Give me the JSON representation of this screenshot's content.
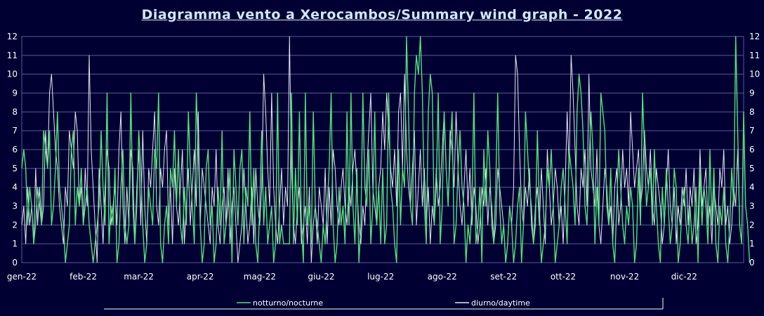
{
  "chart_data": {
    "type": "line",
    "title": "Diagramma vento a Xerocambos/Summary wind graph - 2022",
    "xlabel": "",
    "ylabel": "",
    "ylim": [
      0,
      12
    ],
    "yticks": [
      0,
      1,
      2,
      3,
      4,
      5,
      6,
      7,
      8,
      9,
      10,
      11,
      12
    ],
    "grid": true,
    "legend_position": "bottom",
    "month_labels": [
      "gen-22",
      "feb-22",
      "mar-22",
      "apr-22",
      "mag-22",
      "giu-22",
      "lug-22",
      "ago-22",
      "set-22",
      "ott-22",
      "nov-22",
      "dic-22"
    ],
    "month_days": [
      31,
      28,
      31,
      30,
      31,
      30,
      31,
      31,
      30,
      31,
      30,
      31
    ],
    "colors": {
      "background": "#000033",
      "grid": "#5a5a9a",
      "nocturne": "#55e07a",
      "daytime": "#e8e8f4",
      "title": "#d0e8ff"
    },
    "series": [
      {
        "name": "notturno/nocturne",
        "values": [
          5,
          6,
          5,
          2,
          4,
          3,
          1,
          2,
          4,
          3,
          2,
          7,
          6,
          5,
          7,
          2,
          3,
          5,
          8,
          4,
          3,
          2,
          0,
          1,
          2,
          6,
          7,
          2,
          4,
          3,
          5,
          2,
          3,
          4,
          2,
          1,
          0,
          1,
          2,
          3,
          7,
          4,
          2,
          9,
          1,
          3,
          2,
          5,
          0,
          1,
          4,
          6,
          2,
          1,
          2,
          9,
          3,
          1,
          3,
          7,
          5,
          2,
          0,
          1,
          4,
          3,
          2,
          6,
          5,
          9,
          1,
          0,
          2,
          3,
          1,
          5,
          4,
          7,
          3,
          6,
          2,
          1,
          4,
          2,
          8,
          5,
          3,
          1,
          9,
          6,
          2,
          0,
          1,
          5,
          6,
          2,
          3,
          0,
          1,
          4,
          2,
          7,
          1,
          2,
          3,
          5,
          0,
          6,
          4,
          2,
          5,
          6,
          1,
          4,
          3,
          8,
          2,
          5,
          1,
          0,
          3,
          7,
          2,
          4,
          1,
          2,
          3,
          0,
          1,
          9,
          1,
          2,
          1,
          1,
          1,
          1,
          9,
          1,
          5,
          2,
          8,
          2,
          0,
          9,
          2,
          3,
          1,
          8,
          3,
          2,
          1,
          0,
          2,
          1,
          3,
          5,
          9,
          2,
          0,
          1,
          4,
          2,
          3,
          1,
          8,
          2,
          9,
          3,
          1,
          5,
          0,
          2,
          9,
          4,
          3,
          6,
          1,
          3,
          8,
          2,
          4,
          1,
          5,
          1,
          2,
          9,
          4,
          3,
          1,
          0,
          6,
          2,
          5,
          4,
          12,
          8,
          3,
          2,
          9,
          11,
          10,
          12,
          9,
          3,
          1,
          8,
          10,
          9,
          2,
          4,
          9,
          1,
          3,
          8,
          5,
          3,
          6,
          8,
          1,
          2,
          5,
          7,
          4,
          3,
          0,
          2,
          1,
          3,
          9,
          1,
          2,
          4,
          0,
          6,
          3,
          7,
          5,
          2,
          1,
          4,
          9,
          3,
          1,
          2,
          0,
          1,
          3,
          2,
          0,
          1,
          3,
          4,
          0,
          2,
          8,
          6,
          4,
          3,
          1,
          2,
          7,
          3,
          0,
          1,
          2,
          5,
          4,
          6,
          3,
          0,
          1,
          2,
          4,
          5,
          3,
          1,
          6,
          5,
          4,
          2,
          8,
          10,
          9,
          7,
          3,
          2,
          5,
          8,
          6,
          1,
          4,
          2,
          9,
          8,
          7,
          3,
          2,
          5,
          1,
          0,
          3,
          6,
          4,
          2,
          1,
          3,
          2,
          4,
          3,
          0,
          1,
          5,
          2,
          9,
          6,
          3,
          4,
          5,
          2,
          6,
          3,
          1,
          0,
          4,
          2,
          5,
          3,
          1,
          2,
          5,
          4,
          0,
          1,
          3,
          4,
          2,
          1,
          3,
          1,
          2,
          4,
          0,
          5,
          2,
          4,
          3,
          1,
          6,
          2,
          5,
          1,
          0,
          3,
          2,
          4,
          1,
          0,
          2,
          5,
          3,
          12,
          7,
          2,
          1,
          8,
          3,
          2,
          0
        ]
      },
      {
        "name": "diurno/daytime",
        "values": [
          2,
          3,
          1,
          4,
          2,
          3,
          1,
          5,
          2,
          4,
          2,
          3,
          7,
          5,
          9,
          10,
          8,
          6,
          5,
          3,
          2,
          1,
          4,
          3,
          7,
          6,
          5,
          8,
          7,
          3,
          4,
          2,
          5,
          3,
          11,
          6,
          4,
          2,
          0,
          5,
          3,
          1,
          4,
          6,
          5,
          2,
          3,
          4,
          2,
          6,
          8,
          3,
          1,
          4,
          2,
          6,
          5,
          1,
          4,
          6,
          2,
          7,
          3,
          1,
          5,
          4,
          6,
          8,
          3,
          2,
          5,
          4,
          6,
          7,
          2,
          4,
          1,
          5,
          3,
          2,
          4,
          6,
          1,
          3,
          5,
          2,
          4,
          6,
          3,
          8,
          2,
          5,
          4,
          3,
          2,
          1,
          4,
          3,
          6,
          2,
          1,
          3,
          4,
          2,
          5,
          1,
          3,
          4,
          2,
          0,
          1,
          2,
          5,
          3,
          1,
          2,
          4,
          1,
          5,
          3,
          2,
          4,
          10,
          8,
          5,
          3,
          9,
          4,
          2,
          1,
          3,
          5,
          2,
          4,
          3,
          12,
          5,
          2,
          1,
          3,
          4,
          1,
          2,
          3,
          1,
          4,
          0,
          2,
          3,
          1,
          4,
          3,
          2,
          5,
          1,
          4,
          2,
          6,
          5,
          3,
          2,
          4,
          5,
          3,
          2,
          4,
          3,
          5,
          6,
          4,
          2,
          1,
          3,
          2,
          5,
          7,
          9,
          4,
          3,
          2,
          4,
          5,
          8,
          6,
          9,
          7,
          5,
          4,
          6,
          3,
          8,
          9,
          5,
          10,
          6,
          4,
          3,
          5,
          7,
          2,
          4,
          6,
          3,
          5,
          2,
          4,
          1,
          3,
          2,
          5,
          3,
          4,
          6,
          8,
          5,
          3,
          7,
          6,
          4,
          8,
          5,
          3,
          2,
          4,
          6,
          3,
          5,
          2,
          4,
          3,
          1,
          2,
          4,
          3,
          5,
          2,
          4,
          3,
          1,
          2,
          5,
          4,
          3,
          2,
          0,
          1,
          3,
          2,
          4,
          11,
          10,
          6,
          3,
          2,
          4,
          3,
          5,
          2,
          1,
          3,
          4,
          2,
          5,
          3,
          1,
          6,
          4,
          2,
          3,
          5,
          4,
          2,
          3,
          1,
          4,
          8,
          5,
          11,
          9,
          6,
          3,
          2,
          5,
          4,
          6,
          3,
          10,
          5,
          4,
          3,
          6,
          2,
          1,
          3,
          5,
          4,
          2,
          3,
          1,
          4,
          5,
          2,
          3,
          6,
          4,
          5,
          3,
          8,
          6,
          4,
          5,
          6,
          3,
          4,
          7,
          5,
          4,
          6,
          3,
          2,
          5,
          4,
          3,
          1,
          2,
          4,
          6,
          3,
          2,
          4,
          1,
          3,
          2,
          4,
          3,
          5,
          2,
          4,
          3,
          5,
          1,
          2,
          6,
          3,
          4,
          5,
          2,
          3,
          1,
          4,
          3,
          2,
          5,
          4,
          6,
          2,
          3,
          1,
          2,
          4,
          3,
          6,
          2,
          1
        ]
      }
    ]
  }
}
